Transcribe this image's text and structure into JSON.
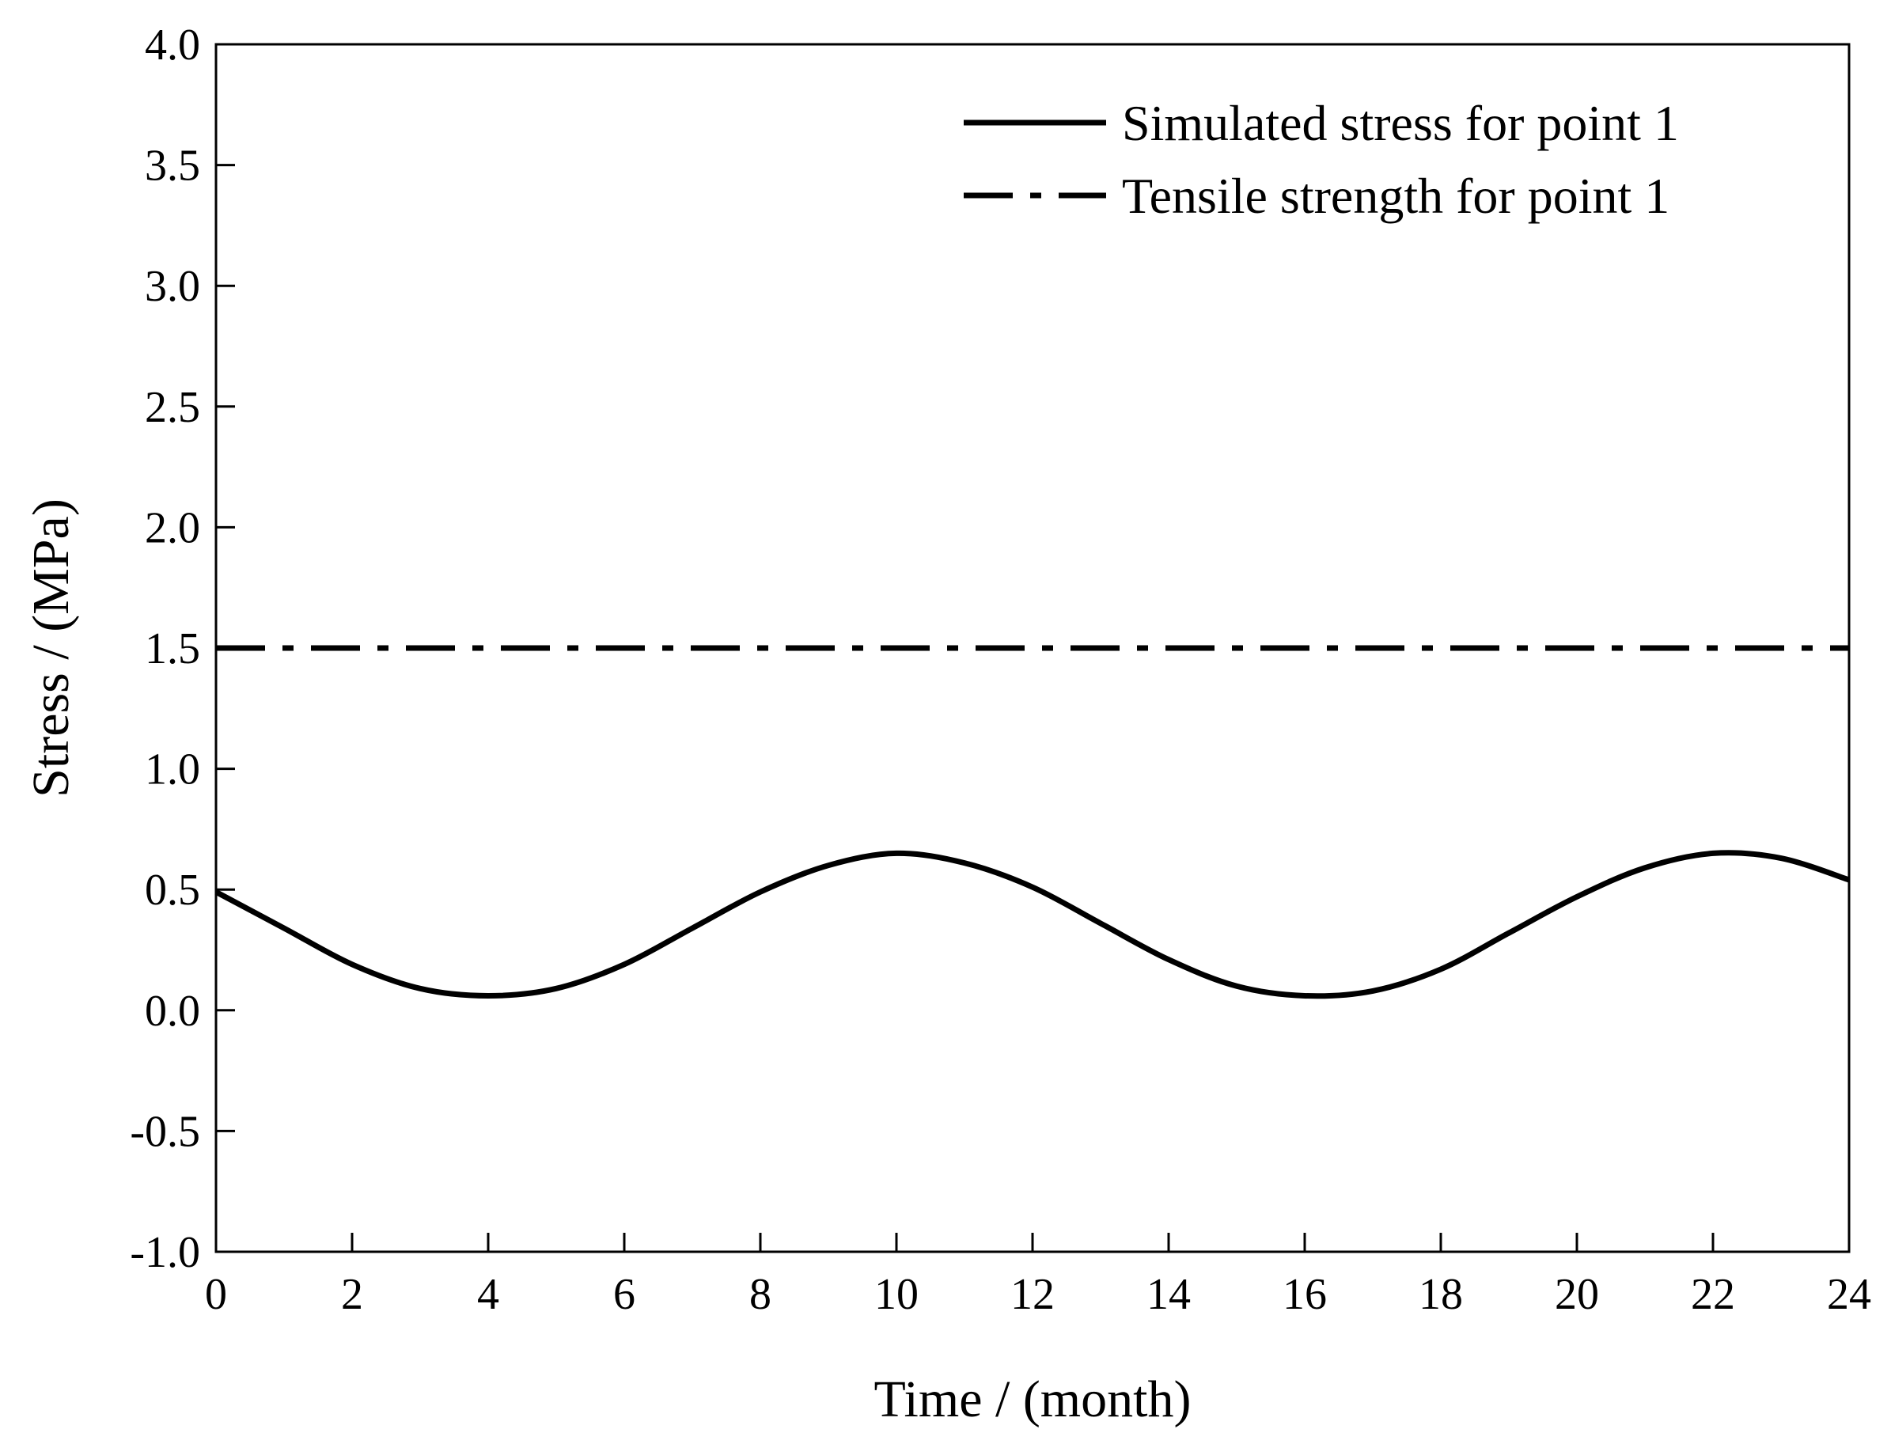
{
  "chart_data": {
    "type": "line",
    "title": "",
    "xlabel": "Time / (month)",
    "ylabel": "Stress / (MPa)",
    "xlim": [
      0,
      24
    ],
    "ylim": [
      -1.0,
      4.0
    ],
    "xticks": [
      "0",
      "2",
      "4",
      "6",
      "8",
      "10",
      "12",
      "14",
      "16",
      "18",
      "20",
      "22",
      "24"
    ],
    "yticks": [
      "-1.0",
      "-0.5",
      "0.0",
      "0.5",
      "1.0",
      "1.5",
      "2.0",
      "2.5",
      "3.0",
      "3.5",
      "4.0"
    ],
    "grid": false,
    "legend_position": "top-right",
    "series": [
      {
        "name": "Simulated stress for point 1",
        "style": "solid",
        "color": "#000000",
        "x": [
          0,
          1,
          2,
          3,
          4,
          5,
          6,
          7,
          8,
          9,
          10,
          11,
          12,
          13,
          14,
          15,
          16,
          17,
          18,
          19,
          20,
          21,
          22,
          23,
          24
        ],
        "y": [
          0.49,
          0.34,
          0.19,
          0.09,
          0.06,
          0.09,
          0.19,
          0.34,
          0.49,
          0.6,
          0.65,
          0.61,
          0.51,
          0.36,
          0.21,
          0.1,
          0.06,
          0.08,
          0.17,
          0.32,
          0.47,
          0.59,
          0.65,
          0.63,
          0.54
        ]
      },
      {
        "name": "Tensile strength for point 1",
        "style": "dash-dot",
        "color": "#000000",
        "x": [
          0,
          24
        ],
        "y": [
          1.5,
          1.5
        ]
      }
    ]
  }
}
